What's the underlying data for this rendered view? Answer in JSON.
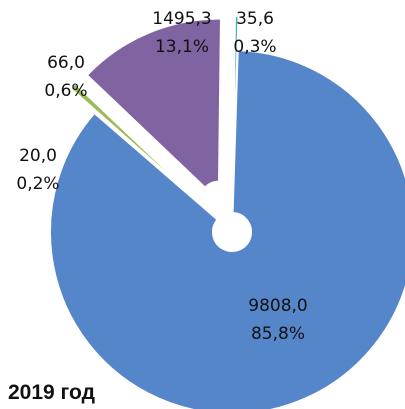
{
  "chart_data": {
    "type": "pie",
    "title": "2019 год",
    "values": [
      35.6,
      9808.0,
      20.0,
      66.0,
      1495.3
    ],
    "value_labels": [
      "35,6",
      "9808,0",
      "20,0",
      "66,0",
      "1495,3"
    ],
    "percents": [
      0.3,
      85.8,
      0.2,
      0.6,
      13.1
    ],
    "percent_labels": [
      "0,3%",
      "85,8%",
      "0,2%",
      "0,6%",
      "13,1%"
    ],
    "colors": [
      "#4bacc6",
      "#5586c9",
      "#c0504d",
      "#9bbb59",
      "#8064a2"
    ]
  }
}
